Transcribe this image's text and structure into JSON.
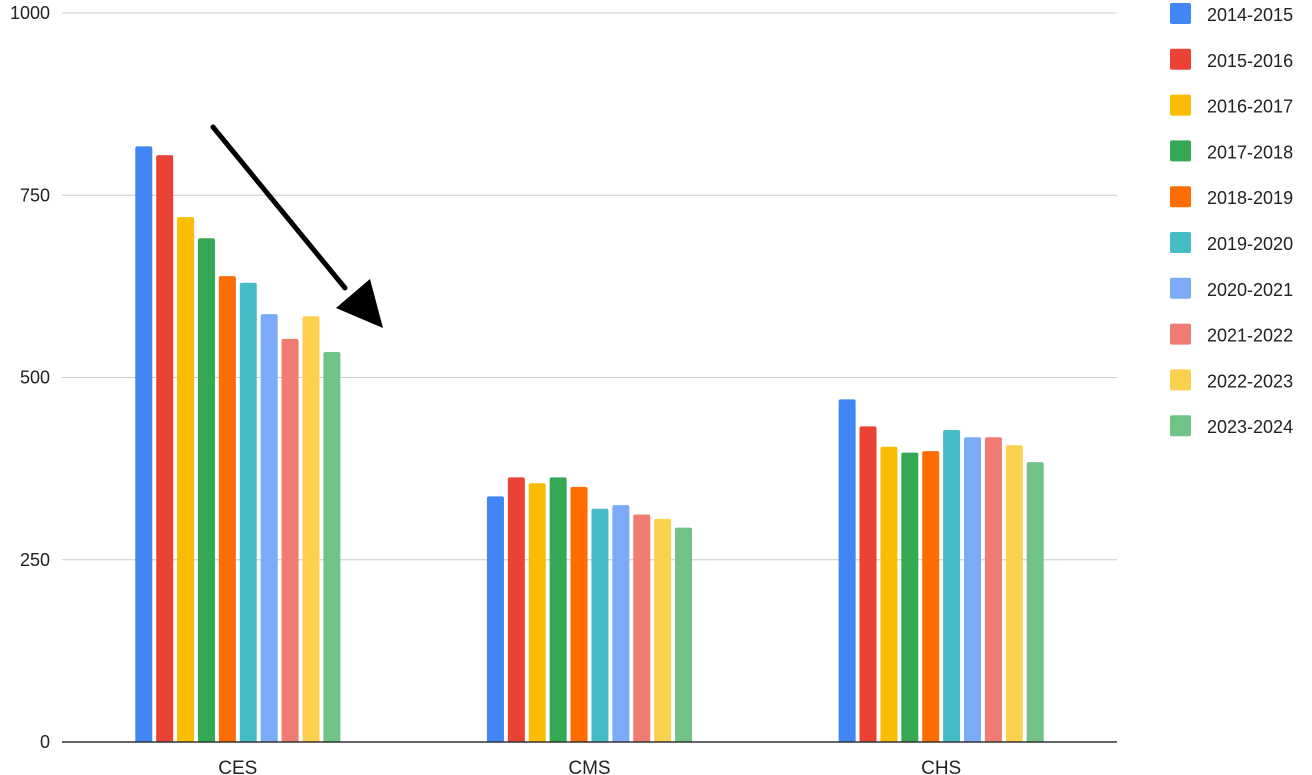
{
  "chart_data": {
    "type": "bar",
    "title": "",
    "xlabel": "",
    "ylabel": "",
    "ylim": [
      0,
      1000
    ],
    "y_ticks": [
      0,
      250,
      500,
      750,
      1000
    ],
    "grid": true,
    "legend_position": "right",
    "categories": [
      "CES",
      "CMS",
      "CHS"
    ],
    "series": [
      {
        "name": "2014-2015",
        "color": "#4285f4",
        "values": [
          817,
          337,
          470
        ]
      },
      {
        "name": "2015-2016",
        "color": "#ea4335",
        "values": [
          805,
          363,
          433
        ]
      },
      {
        "name": "2016-2017",
        "color": "#fbbc04",
        "values": [
          720,
          355,
          405
        ]
      },
      {
        "name": "2017-2018",
        "color": "#34a853",
        "values": [
          691,
          363,
          397
        ]
      },
      {
        "name": "2018-2019",
        "color": "#ff6d01",
        "values": [
          639,
          350,
          399
        ]
      },
      {
        "name": "2019-2020",
        "color": "#46bdc6",
        "values": [
          630,
          320,
          428
        ]
      },
      {
        "name": "2020-2021",
        "color": "#7baaf7",
        "values": [
          587,
          325,
          418
        ]
      },
      {
        "name": "2021-2022",
        "color": "#f07b72",
        "values": [
          553,
          312,
          418
        ]
      },
      {
        "name": "2022-2023",
        "color": "#fcd04f",
        "values": [
          584,
          306,
          407
        ]
      },
      {
        "name": "2023-2024",
        "color": "#71c287",
        "values": [
          535,
          294,
          384
        ]
      }
    ],
    "annotations": [
      {
        "type": "arrow",
        "description": "black arrow pointing down along declining CES bars",
        "color": "#000000"
      }
    ]
  }
}
